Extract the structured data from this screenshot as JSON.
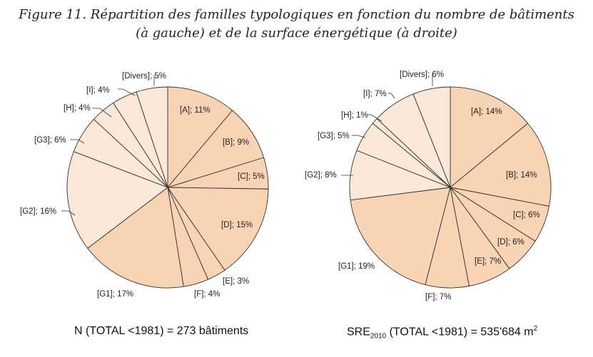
{
  "figure": {
    "title_line1": "Figure 11. Répartition des familles typologiques en fonction du nombre de bâtiments",
    "title_line2": "(à gauche) et de la surface énergétique (à droite)"
  },
  "captions": {
    "left": "N (TOTAL <1981) = 273 bâtiments",
    "right_prefix": "SRE",
    "right_sub": "2010",
    "right_rest": " (TOTAL <1981) = 535'684 m",
    "right_sup": "2"
  },
  "colors": {
    "dark": "#f8d4b5",
    "light": "#fde8d8",
    "edge": "#333333"
  },
  "chart_data": [
    {
      "type": "pie",
      "title": "N (TOTAL <1981) = 273 bâtiments",
      "unit": "%",
      "slices": [
        {
          "name": "A",
          "value": 11,
          "label": "[A]; 11%",
          "shade": "dark"
        },
        {
          "name": "B",
          "value": 9,
          "label": "[B]; 9%",
          "shade": "dark"
        },
        {
          "name": "C",
          "value": 5,
          "label": "[C]; 5%",
          "shade": "dark"
        },
        {
          "name": "D",
          "value": 15,
          "label": "[D]; 15%",
          "shade": "dark"
        },
        {
          "name": "E",
          "value": 3,
          "label": "[E]; 3%",
          "shade": "dark"
        },
        {
          "name": "F",
          "value": 4,
          "label": "[F]; 4%",
          "shade": "dark"
        },
        {
          "name": "G1",
          "value": 17,
          "label": "[G1]; 17%",
          "shade": "dark"
        },
        {
          "name": "G2",
          "value": 16,
          "label": "[G2]; 16%",
          "shade": "light"
        },
        {
          "name": "G3",
          "value": 6,
          "label": "[G3]; 6%",
          "shade": "light"
        },
        {
          "name": "H",
          "value": 4,
          "label": "[H]; 4%",
          "shade": "light"
        },
        {
          "name": "I",
          "value": 4,
          "label": "[I]; 4%",
          "shade": "light"
        },
        {
          "name": "Divers",
          "value": 5,
          "label": "[Divers]; 5%",
          "shade": "light"
        }
      ]
    },
    {
      "type": "pie",
      "title": "SRE2010 (TOTAL <1981) = 535'684 m2",
      "unit": "%",
      "slices": [
        {
          "name": "A",
          "value": 14,
          "label": "[A]; 14%",
          "shade": "dark"
        },
        {
          "name": "B",
          "value": 14,
          "label": "[B]; 14%",
          "shade": "dark"
        },
        {
          "name": "C",
          "value": 6,
          "label": "[C]; 6%",
          "shade": "dark"
        },
        {
          "name": "D",
          "value": 6,
          "label": "[D]; 6%",
          "shade": "dark"
        },
        {
          "name": "E",
          "value": 7,
          "label": "[E]; 7%",
          "shade": "dark"
        },
        {
          "name": "F",
          "value": 7,
          "label": "[F]; 7%",
          "shade": "dark"
        },
        {
          "name": "G1",
          "value": 19,
          "label": "[G1]; 19%",
          "shade": "dark"
        },
        {
          "name": "G2",
          "value": 8,
          "label": "[G2]; 8%",
          "shade": "light"
        },
        {
          "name": "G3",
          "value": 5,
          "label": "[G3]; 5%",
          "shade": "light"
        },
        {
          "name": "H",
          "value": 1,
          "label": "[H]; 1%",
          "shade": "light"
        },
        {
          "name": "I",
          "value": 7,
          "label": "[I]; 7%",
          "shade": "light"
        },
        {
          "name": "Divers",
          "value": 6,
          "label": "[Divers]; 6%",
          "shade": "light"
        }
      ]
    }
  ]
}
